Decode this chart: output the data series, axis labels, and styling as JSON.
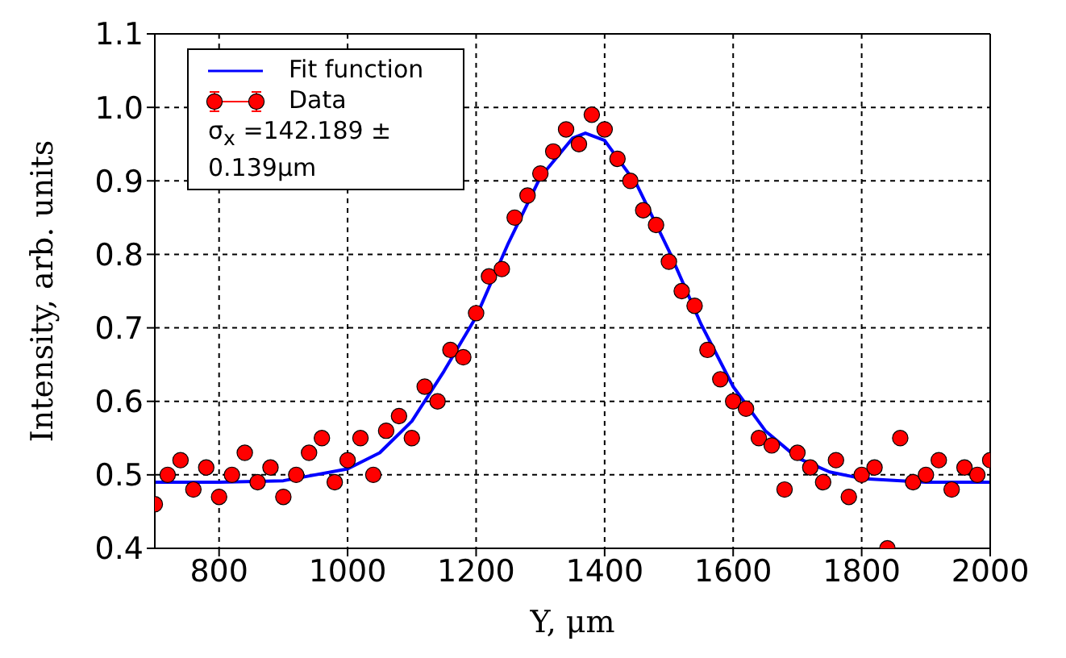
{
  "chart_data": {
    "type": "scatter",
    "xlabel": "Y, μm",
    "ylabel": "Intensity, arb. units",
    "xlim": [
      700,
      2000
    ],
    "xticks": [
      800,
      1000,
      1200,
      1400,
      1600,
      1800,
      2000
    ],
    "ylim": [
      0.4,
      1.1
    ],
    "yticks": [
      0.4,
      0.5,
      0.6,
      0.7,
      0.8,
      0.9,
      {
        "value": 1,
        "label": "1.0"
      },
      1.1
    ],
    "grid": true,
    "legend": "top left",
    "marker": "circle",
    "annotations": [
      "σ$_{x}$ =142.189 ± 0.139μm"
    ],
    "series": [
      {
        "name": "Fit function",
        "type": "line",
        "color": "#0000ff",
        "marker": "none",
        "line_style": "solid",
        "x": [
          700,
          800,
          900,
          1000,
          1050,
          1100,
          1150,
          1200,
          1250,
          1300,
          1350,
          1370,
          1400,
          1450,
          1500,
          1550,
          1600,
          1650,
          1700,
          1750,
          1800,
          1900,
          2000
        ],
        "values": [
          0.49,
          0.49,
          0.492,
          0.508,
          0.53,
          0.573,
          0.641,
          0.715,
          0.815,
          0.905,
          0.958,
          0.965,
          0.955,
          0.895,
          0.805,
          0.705,
          0.62,
          0.56,
          0.523,
          0.504,
          0.495,
          0.49,
          0.49
        ]
      },
      {
        "name": "Data",
        "color": "#ff0000",
        "x": [
          700,
          720,
          740,
          760,
          780,
          800,
          820,
          840,
          860,
          880,
          900,
          920,
          940,
          960,
          980,
          1000,
          1020,
          1040,
          1060,
          1080,
          1100,
          1120,
          1140,
          1160,
          1180,
          1200,
          1220,
          1240,
          1260,
          1280,
          1300,
          1320,
          1340,
          1360,
          1380,
          1400,
          1420,
          1440,
          1460,
          1480,
          1500,
          1520,
          1540,
          1560,
          1580,
          1600,
          1620,
          1640,
          1660,
          1680,
          1700,
          1720,
          1740,
          1760,
          1780,
          1800,
          1820,
          1840,
          1860,
          1880,
          1900,
          1920,
          1940,
          1960,
          1980,
          2000
        ],
        "values": [
          0.46,
          0.5,
          0.52,
          0.48,
          0.51,
          0.47,
          0.5,
          0.53,
          0.49,
          0.51,
          0.47,
          0.5,
          0.53,
          0.55,
          0.49,
          0.52,
          0.55,
          0.5,
          0.56,
          0.58,
          0.55,
          0.62,
          0.6,
          0.67,
          0.66,
          0.72,
          0.77,
          0.78,
          0.85,
          0.88,
          0.91,
          0.94,
          0.97,
          0.95,
          0.99,
          0.97,
          0.93,
          0.9,
          0.86,
          0.84,
          0.79,
          0.75,
          0.73,
          0.67,
          0.63,
          0.6,
          0.59,
          0.55,
          0.54,
          0.48,
          0.53,
          0.51,
          0.49,
          0.52,
          0.47,
          0.5,
          0.51,
          0.4,
          0.55,
          0.49,
          0.5,
          0.52,
          0.48,
          0.51,
          0.5,
          0.52
        ]
      }
    ]
  }
}
